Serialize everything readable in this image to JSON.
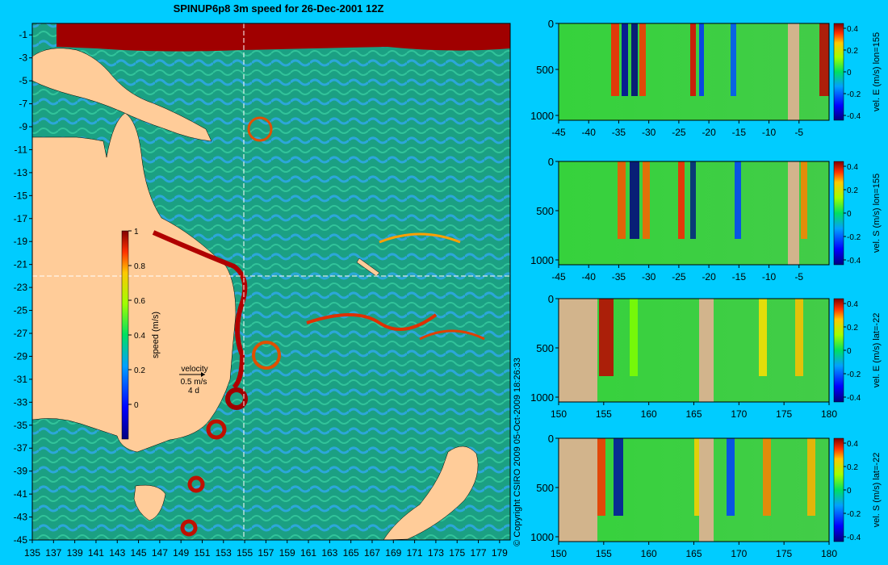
{
  "title": "SPINUP6p8 3m speed for 26-Dec-2001 12Z",
  "copyright": "© Copyright CSIRO 2009   05-Oct-2009 18:26:33",
  "colors": {
    "background": "#00ccff",
    "land": "#ffcc99",
    "section_land": "#d2b48c",
    "crosshair": "#ffffff"
  },
  "map": {
    "xticks": [
      "135",
      "137",
      "139",
      "141",
      "143",
      "145",
      "147",
      "149",
      "151",
      "153",
      "155",
      "157",
      "159",
      "161",
      "163",
      "165",
      "167",
      "169",
      "171",
      "173",
      "175",
      "177",
      "179"
    ],
    "yticks": [
      "-1",
      "-3",
      "-5",
      "-7",
      "-9",
      "-11",
      "-13",
      "-15",
      "-17",
      "-19",
      "-21",
      "-23",
      "-25",
      "-27",
      "-29",
      "-31",
      "-33",
      "-35",
      "-37",
      "-39",
      "-41",
      "-43",
      "-45"
    ],
    "lon_range": [
      135,
      180
    ],
    "lat_range": [
      -45,
      0
    ],
    "crosshair": {
      "lon": 155,
      "lat": -22
    },
    "colorbar": {
      "label": "speed (m/s)",
      "ticks": [
        "1",
        "0.8",
        "0.6",
        "0.4",
        "0.2",
        "0"
      ],
      "range": [
        -0.2,
        1
      ]
    },
    "velocity_key": {
      "title": "velocity",
      "scale": "0.5 m/s",
      "days": "4 d"
    }
  },
  "sections": [
    {
      "ylabel": "vel. E (m/s) lon=155",
      "xticks": [
        "-45",
        "-40",
        "-35",
        "-30",
        "-25",
        "-20",
        "-15",
        "-10",
        "-5"
      ],
      "yticks": [
        "0",
        "500",
        "1000"
      ],
      "cbar_ticks": [
        "0.4",
        "0.2",
        "0",
        "-0.2",
        "-0.4"
      ]
    },
    {
      "ylabel": "vel. S (m/s) lon=155",
      "xticks": [
        "-45",
        "-40",
        "-35",
        "-30",
        "-25",
        "-20",
        "-15",
        "-10",
        "-5"
      ],
      "yticks": [
        "0",
        "500",
        "1000"
      ],
      "cbar_ticks": [
        "0.4",
        "0.2",
        "0",
        "-0.2",
        "-0.4"
      ]
    },
    {
      "ylabel": "vel. E (m/s) lat=-22",
      "xticks": [
        "150",
        "155",
        "160",
        "165",
        "170",
        "175",
        "180"
      ],
      "yticks": [
        "0",
        "500",
        "1000"
      ],
      "cbar_ticks": [
        "0.4",
        "0.2",
        "0",
        "-0.2",
        "-0.4"
      ]
    },
    {
      "ylabel": "vel. S (m/s) lat=-22",
      "xticks": [
        "150",
        "155",
        "160",
        "165",
        "170",
        "175",
        "180"
      ],
      "yticks": [
        "0",
        "500",
        "1000"
      ],
      "cbar_ticks": [
        "0.4",
        "0.2",
        "0",
        "-0.2",
        "-0.4"
      ]
    }
  ],
  "chart_data": [
    {
      "type": "heatmap",
      "title": "SPINUP6p8 3m speed for 26-Dec-2001 12Z",
      "xlabel": "",
      "ylabel": "",
      "xlim": [
        135,
        180
      ],
      "ylim": [
        -45,
        0
      ],
      "colorbar_label": "speed (m/s)",
      "clim": [
        -0.2,
        1
      ],
      "features": [
        {
          "name": "eddy",
          "lon": 153.5,
          "lat": -33.5
        },
        {
          "name": "eddy",
          "lon": 151.5,
          "lat": -35.5
        },
        {
          "name": "eddy",
          "lon": 149.5,
          "lat": -39.5
        },
        {
          "name": "eddy",
          "lon": 149.5,
          "lat": -43.5
        },
        {
          "name": "eddy",
          "lon": 157,
          "lat": -29.5
        },
        {
          "name": "eddy",
          "lon": 155.5,
          "lat": -9.5
        }
      ]
    },
    {
      "type": "heatmap",
      "ylabel": "vel. E (m/s) lon=155",
      "xlim": [
        -45,
        0
      ],
      "ylim": [
        1000,
        0
      ],
      "clim": [
        -0.4,
        0.4
      ]
    },
    {
      "type": "heatmap",
      "ylabel": "vel. S (m/s) lon=155",
      "xlim": [
        -45,
        0
      ],
      "ylim": [
        1000,
        0
      ],
      "clim": [
        -0.4,
        0.4
      ]
    },
    {
      "type": "heatmap",
      "ylabel": "vel. E (m/s) lat=-22",
      "xlim": [
        150,
        180
      ],
      "ylim": [
        1000,
        0
      ],
      "clim": [
        -0.4,
        0.4
      ]
    },
    {
      "type": "heatmap",
      "ylabel": "vel. S (m/s) lat=-22",
      "xlim": [
        150,
        180
      ],
      "ylim": [
        1000,
        0
      ],
      "clim": [
        -0.4,
        0.4
      ]
    }
  ]
}
